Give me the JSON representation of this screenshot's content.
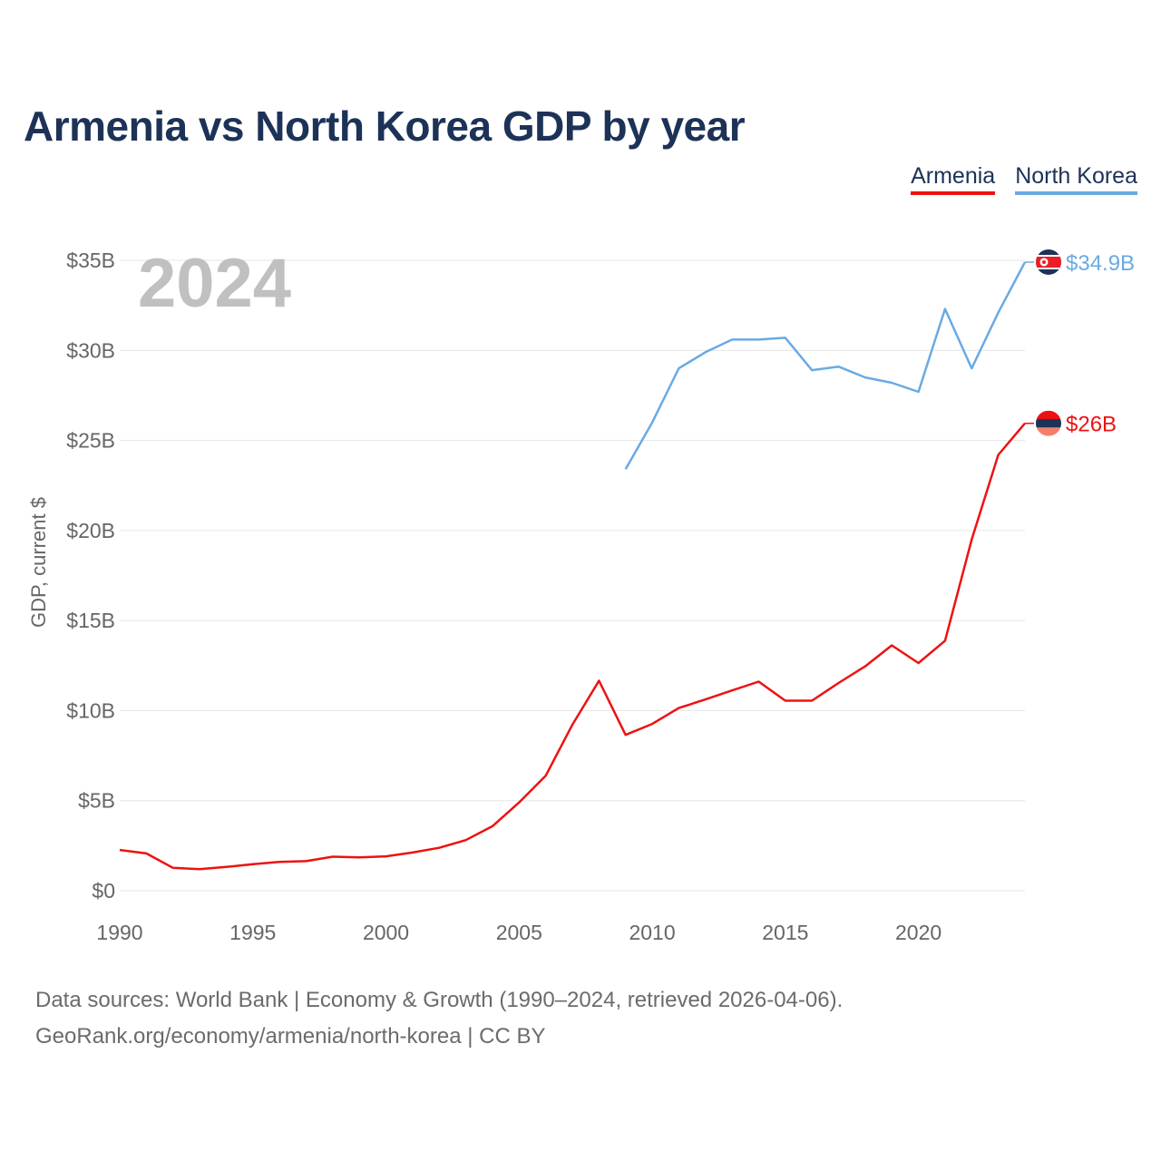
{
  "title": "Armenia vs North Korea GDP by year",
  "legend": {
    "armenia": "Armenia",
    "north_korea": "North Korea"
  },
  "colors": {
    "armenia": "#ee1111",
    "north_korea": "#6aaae4",
    "grid": "#e6e6e6",
    "year_watermark": "#c0c0c0",
    "axis_text": "#666666"
  },
  "source": {
    "line1": "Data sources: World Bank | Economy & Growth (1990–2024, retrieved 2026-04-06).",
    "line2": "GeoRank.org/economy/armenia/north-korea | CC BY"
  },
  "chart_data": {
    "type": "line",
    "title": "Armenia vs North Korea GDP by year",
    "xlabel": "",
    "ylabel": "GDP, current $",
    "xlim": [
      1990,
      2024
    ],
    "ylim": [
      0,
      35
    ],
    "unit": "billion USD",
    "x_ticks": [
      1990,
      1995,
      2000,
      2005,
      2010,
      2015,
      2020
    ],
    "x_tick_labels": [
      "1990",
      "1995",
      "2000",
      "2005",
      "2010",
      "2015",
      "2020"
    ],
    "y_ticks": [
      0,
      5,
      10,
      15,
      20,
      25,
      30,
      35
    ],
    "y_tick_labels": [
      "$0",
      "$5B",
      "$10B",
      "$15B",
      "$20B",
      "$25B",
      "$30B",
      "$35B"
    ],
    "year_watermark": "2024",
    "legend_position": "top-right",
    "grid": true,
    "series": [
      {
        "name": "Armenia",
        "color": "#ee1111",
        "end_label": "$26B",
        "x": [
          1990,
          1991,
          1992,
          1993,
          1994,
          1995,
          1996,
          1997,
          1998,
          1999,
          2000,
          2001,
          2002,
          2003,
          2004,
          2005,
          2006,
          2007,
          2008,
          2009,
          2010,
          2011,
          2012,
          2013,
          2014,
          2015,
          2016,
          2017,
          2018,
          2019,
          2020,
          2021,
          2022,
          2023,
          2024
        ],
        "values": [
          2.26,
          2.07,
          1.27,
          1.2,
          1.32,
          1.47,
          1.6,
          1.64,
          1.89,
          1.85,
          1.91,
          2.12,
          2.38,
          2.81,
          3.58,
          4.9,
          6.38,
          9.21,
          11.66,
          8.65,
          9.26,
          10.14,
          10.62,
          11.12,
          11.61,
          10.55,
          10.55,
          11.53,
          12.46,
          13.62,
          12.64,
          13.88,
          19.5,
          24.2,
          25.95
        ]
      },
      {
        "name": "North Korea",
        "color": "#6aaae4",
        "end_label": "$34.9B",
        "x": [
          2009,
          2010,
          2011,
          2012,
          2013,
          2014,
          2015,
          2016,
          2017,
          2018,
          2019,
          2020,
          2021,
          2022,
          2023,
          2024
        ],
        "values": [
          23.4,
          26.0,
          29.0,
          29.9,
          30.6,
          30.6,
          30.7,
          28.9,
          29.1,
          28.5,
          28.2,
          27.7,
          32.3,
          29.0,
          32.1,
          34.9
        ]
      }
    ]
  }
}
